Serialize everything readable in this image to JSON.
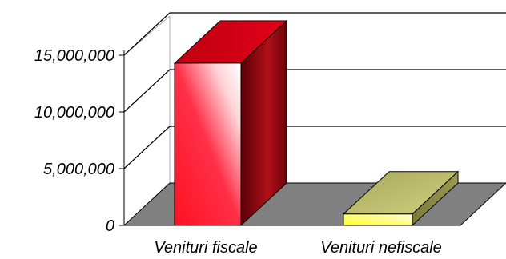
{
  "chart_data": {
    "type": "bar",
    "style": "3d-column",
    "categories": [
      "Venituri fiscale",
      "Venituri nefiscale"
    ],
    "values": [
      14300000,
      1000000
    ],
    "y_ticks": [
      0,
      5000000,
      10000000,
      15000000
    ],
    "y_tick_labels": [
      "0",
      "5,000,000",
      "10,000,000",
      "15,000,000"
    ],
    "ylim": [
      0,
      15000000
    ],
    "grid": true,
    "legend": "none",
    "colors": {
      "bar_1": "#e0001a",
      "bar_1_side": "#6b0006",
      "bar_2": "#f4f070",
      "bar_2_side": "#8a8a48",
      "floor": "#808080"
    }
  }
}
